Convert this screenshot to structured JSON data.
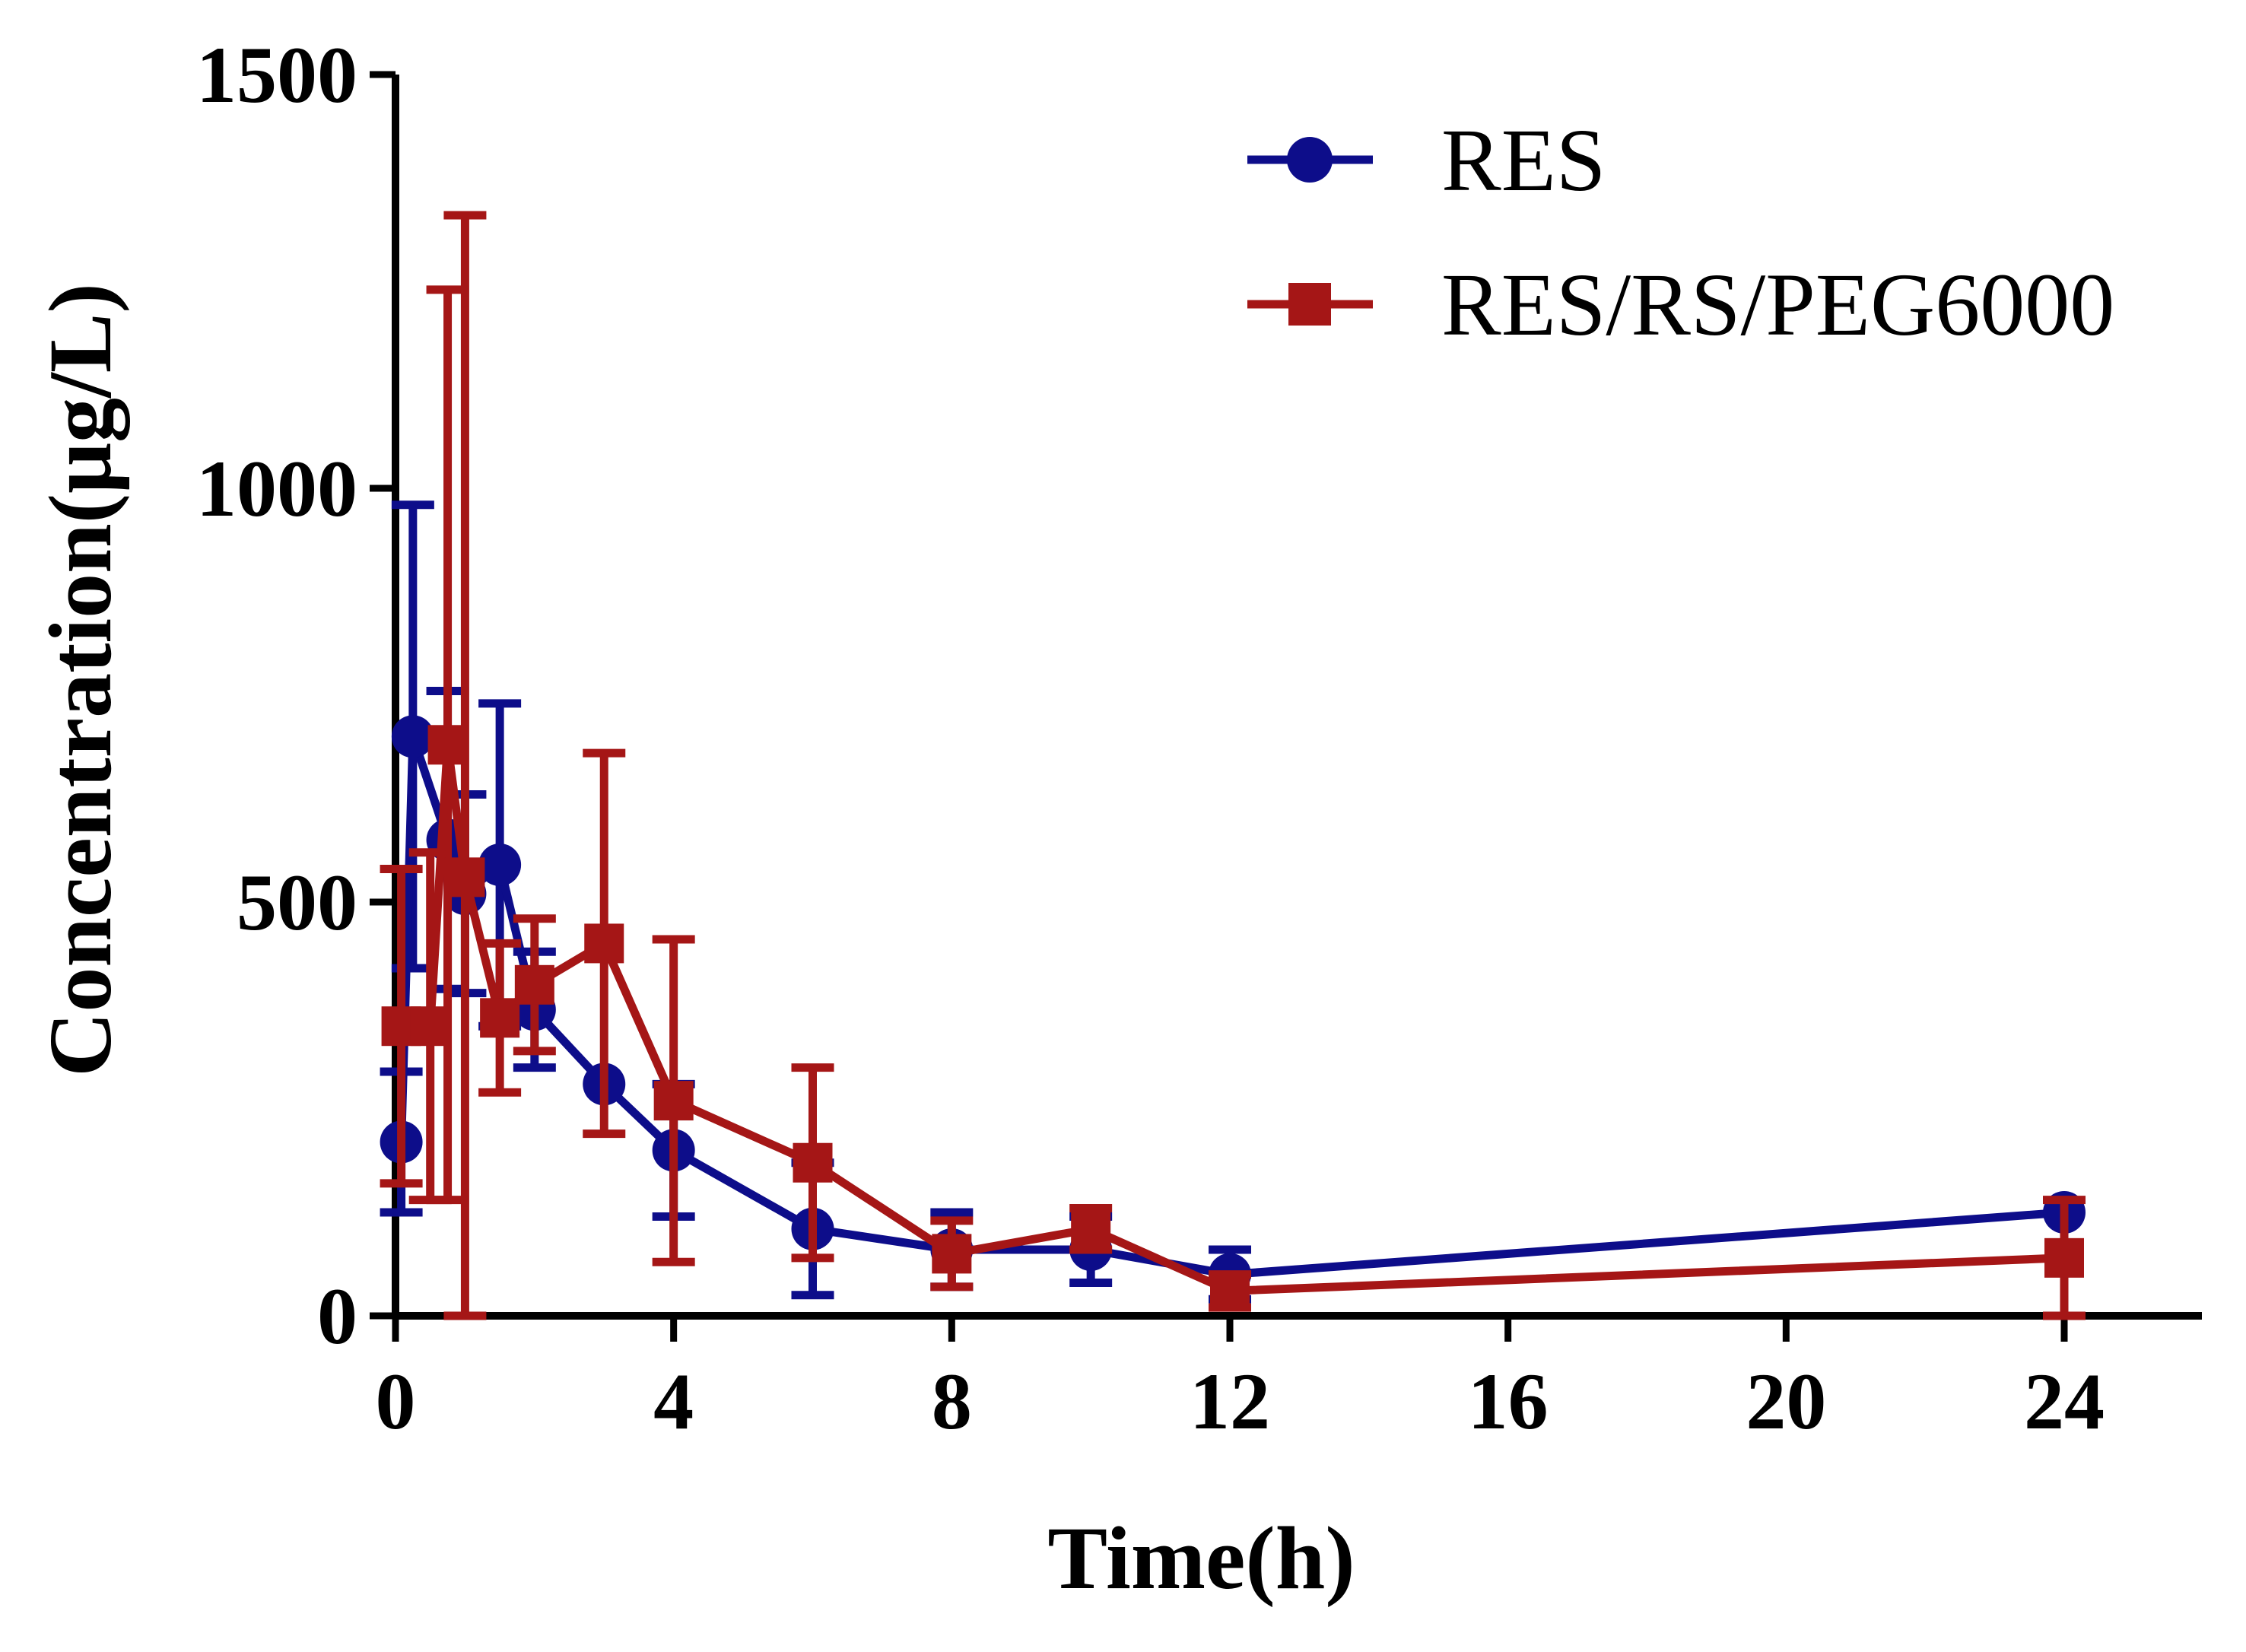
{
  "chart_data": {
    "type": "line",
    "title": "",
    "xlabel": "Time(h)",
    "ylabel": "Concentration(μg/L)",
    "xlim": [
      0,
      26
    ],
    "ylim": [
      0,
      1500
    ],
    "x_ticks": [
      0,
      4,
      8,
      12,
      16,
      20,
      24
    ],
    "y_ticks": [
      0,
      500,
      1000,
      1500
    ],
    "grid": false,
    "legend_position": "top-right",
    "error_bars": "mean ± SD",
    "series": [
      {
        "name": "RES",
        "color": "#0d0d8a",
        "marker": "circle",
        "x": [
          0.083,
          0.25,
          0.75,
          1.0,
          1.5,
          2,
          3,
          4,
          6,
          8,
          10,
          12,
          24
        ],
        "y": [
          210,
          700,
          575,
          510,
          545,
          370,
          280,
          200,
          105,
          80,
          80,
          50,
          125
        ],
        "err": [
          85,
          280,
          180,
          120,
          195,
          70,
          0,
          80,
          80,
          45,
          40,
          30,
          0
        ]
      },
      {
        "name": "RES/RS/PEG6000",
        "color": "#a51616",
        "marker": "square",
        "x": [
          0.083,
          0.5,
          0.75,
          1.0,
          1.5,
          2,
          3,
          4,
          6,
          8,
          10,
          12,
          24
        ],
        "y": [
          350,
          350,
          690,
          530,
          360,
          400,
          450,
          260,
          185,
          75,
          105,
          30,
          70
        ],
        "err": [
          190,
          210,
          550,
          800,
          90,
          80,
          230,
          195,
          115,
          40,
          25,
          20,
          70
        ]
      }
    ]
  }
}
